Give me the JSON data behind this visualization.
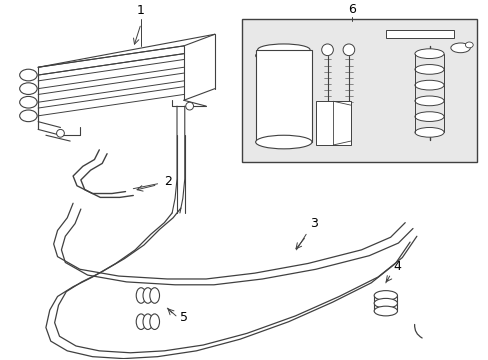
{
  "bg_color": "#ffffff",
  "line_color": "#404040",
  "box_fill": "#e0e0e0",
  "label_color": "#000000",
  "figsize": [
    4.89,
    3.6
  ],
  "dpi": 100
}
